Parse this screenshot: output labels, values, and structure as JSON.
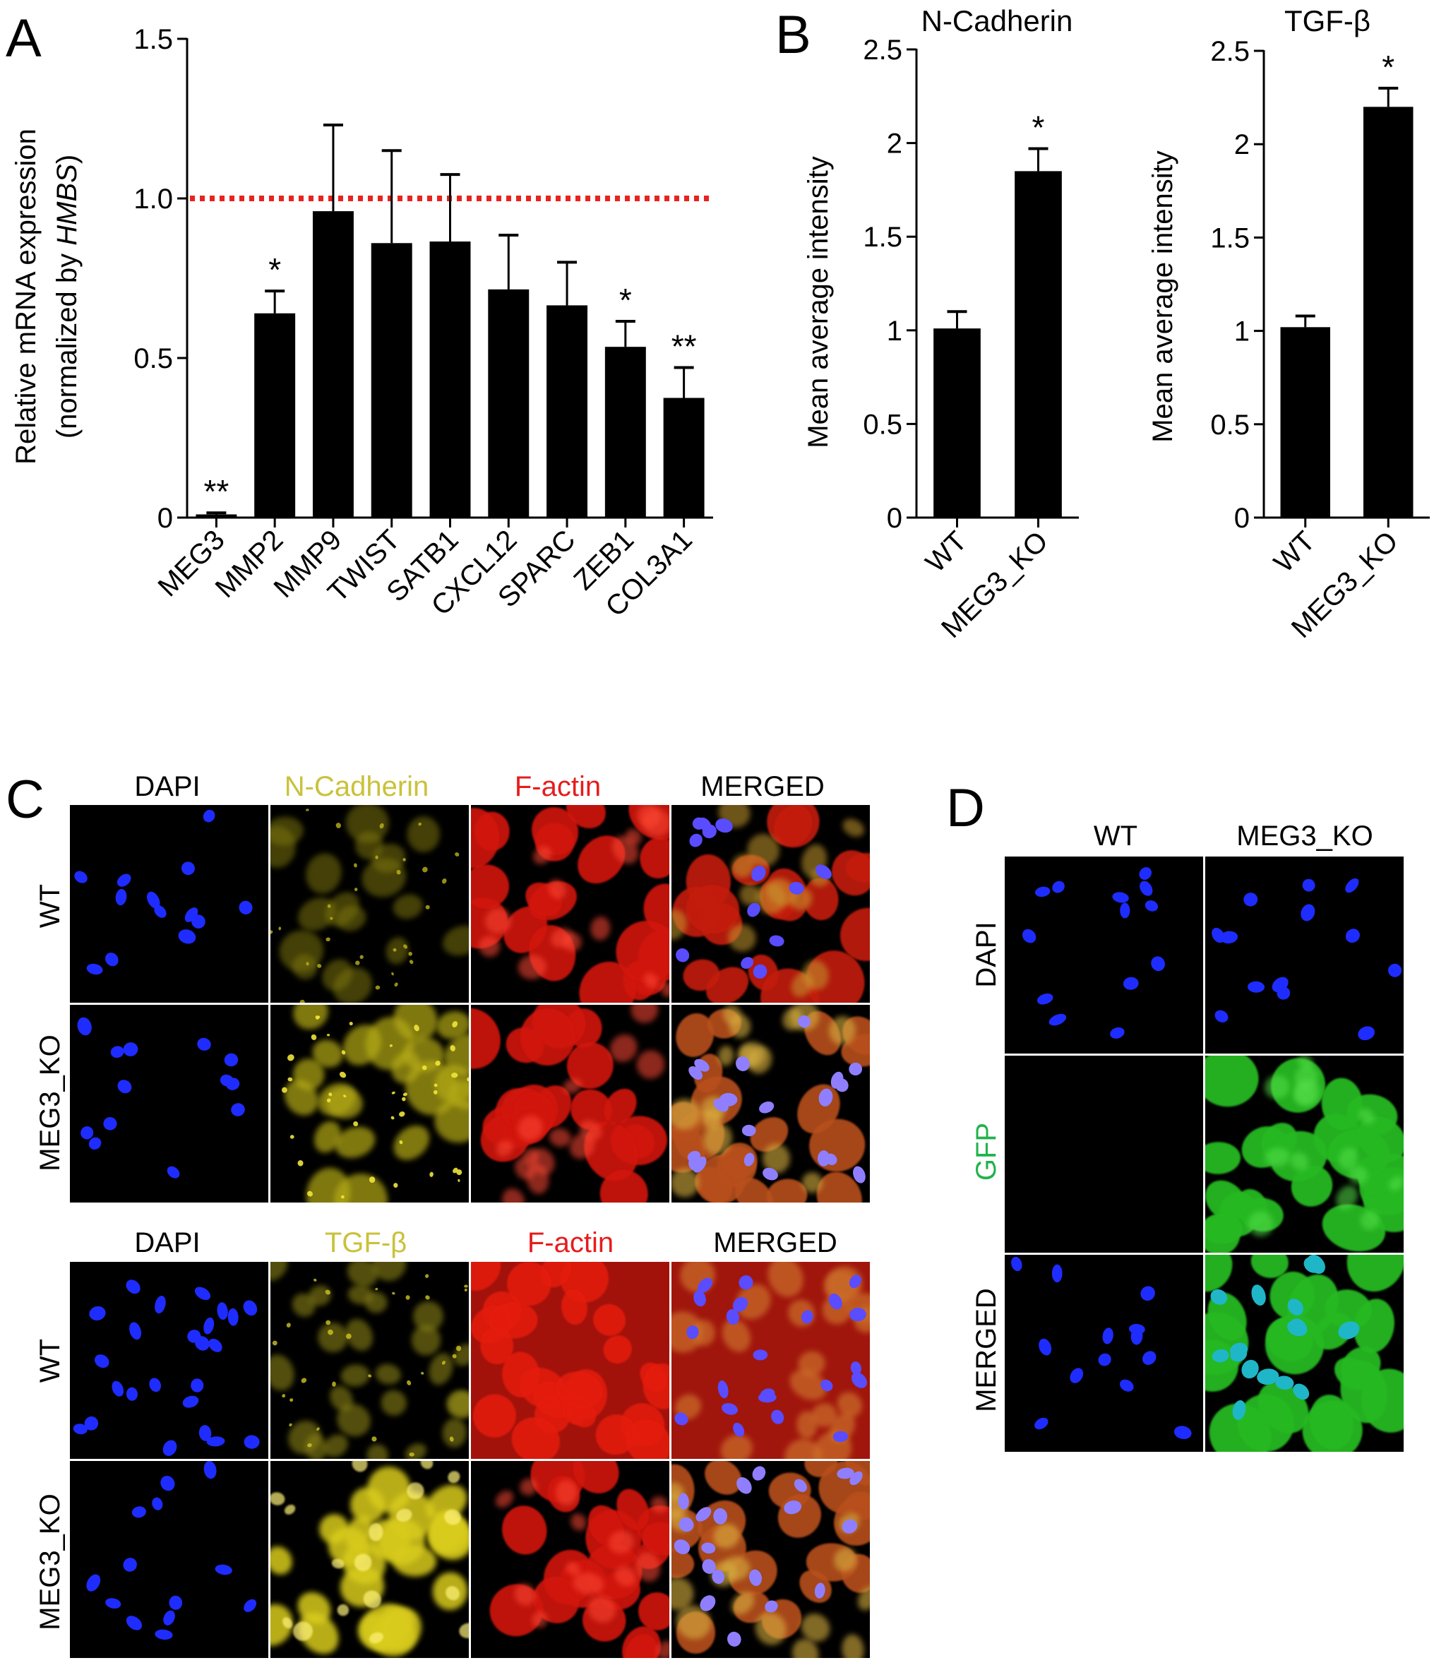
{
  "panels": {
    "A": {
      "letter": "A"
    },
    "B": {
      "letter": "B"
    },
    "C": {
      "letter": "C"
    },
    "D": {
      "letter": "D"
    }
  },
  "chart_data": [
    {
      "id": "A",
      "type": "bar",
      "ylabel_line1": "Relative mRNA expression",
      "ylabel_line2_prefix": "(normalized by ",
      "ylabel_line2_italic": "HMBS",
      "ylabel_line2_suffix": ")",
      "ylim": [
        0,
        1.5
      ],
      "yticks": [
        "0",
        "0.5",
        "1.0",
        "1.5"
      ],
      "yticks_values": [
        0,
        0.5,
        1.0,
        1.5
      ],
      "reference_line": {
        "y": 1.0,
        "style": "dotted",
        "color": "#e8231f"
      },
      "categories": [
        "MEG3",
        "MMP2",
        "MMP9",
        "TWIST",
        "SATB1",
        "CXCL12",
        "SPARC",
        "ZEB1",
        "COL3A1"
      ],
      "values": [
        0.01,
        0.64,
        0.96,
        0.86,
        0.865,
        0.715,
        0.665,
        0.535,
        0.375
      ],
      "errors": [
        0.005,
        0.07,
        0.27,
        0.29,
        0.21,
        0.17,
        0.135,
        0.08,
        0.095
      ],
      "significance": [
        "**",
        "*",
        "",
        "",
        "",
        "",
        "",
        "*",
        "**"
      ]
    },
    {
      "id": "B1",
      "type": "bar",
      "title": "N-Cadherin",
      "ylabel": "Mean average intensity",
      "ylim": [
        0,
        2.5
      ],
      "yticks": [
        "0",
        "0.5",
        "1",
        "1.5",
        "2",
        "2.5"
      ],
      "yticks_values": [
        0,
        0.5,
        1,
        1.5,
        2,
        2.5
      ],
      "categories": [
        "WT",
        "MEG3_KO"
      ],
      "values": [
        1.01,
        1.85
      ],
      "errors": [
        0.09,
        0.12
      ],
      "significance": [
        "",
        "*"
      ]
    },
    {
      "id": "B2",
      "type": "bar",
      "title": "TGF-β",
      "ylabel": "Mean average intensity",
      "ylim": [
        0,
        2.5
      ],
      "yticks": [
        "0",
        "0.5",
        "1",
        "1.5",
        "2",
        "2.5"
      ],
      "yticks_values": [
        0,
        0.5,
        1,
        1.5,
        2,
        2.5
      ],
      "categories": [
        "WT",
        "MEG3_KO"
      ],
      "values": [
        1.02,
        2.2
      ],
      "errors": [
        0.06,
        0.1
      ],
      "significance": [
        "",
        "*"
      ]
    }
  ],
  "panel_C": {
    "top": {
      "columns": [
        "DAPI",
        "N-Cadherin",
        "F-actin",
        "MERGED"
      ],
      "column_colors": [
        "#000000",
        "#c9c23a",
        "#e61c1c",
        "#000000"
      ],
      "rows": [
        "WT",
        "MEG3_KO"
      ]
    },
    "bottom": {
      "columns": [
        "DAPI",
        "TGF-β",
        "F-actin",
        "MERGED"
      ],
      "column_colors": [
        "#000000",
        "#c9c23a",
        "#e61c1c",
        "#000000"
      ],
      "rows": [
        "WT",
        "MEG3_KO"
      ]
    }
  },
  "panel_D": {
    "columns": [
      "WT",
      "MEG3_KO"
    ],
    "rows": [
      "DAPI",
      "GFP",
      "MERGED"
    ],
    "row_colors": [
      "#000000",
      "#22b24c",
      "#000000"
    ]
  },
  "colors": {
    "bar": "#000000",
    "nucleus": "#1f2cff",
    "ncad": "#d8cd1c",
    "actin": "#e01a12",
    "gfp": "#2fc72a"
  }
}
